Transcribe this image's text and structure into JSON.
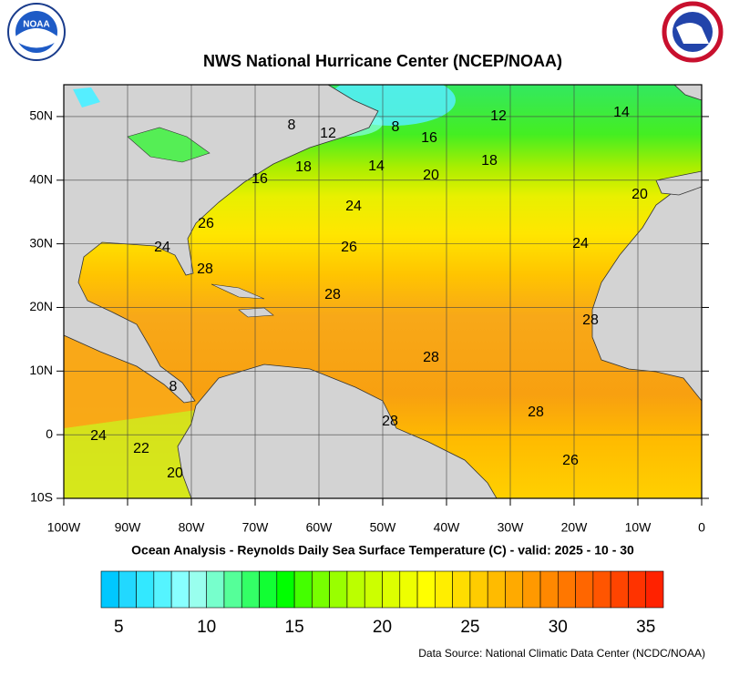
{
  "title": "NWS National Hurricane Center (NCEP/NOAA)",
  "logo_text": "NOAA",
  "map": {
    "xlim": [
      -100,
      0
    ],
    "ylim": [
      -10,
      55
    ],
    "xticks": [
      {
        "value": -100,
        "label": "100W"
      },
      {
        "value": -90,
        "label": "90W"
      },
      {
        "value": -80,
        "label": "80W"
      },
      {
        "value": -70,
        "label": "70W"
      },
      {
        "value": -60,
        "label": "60W"
      },
      {
        "value": -50,
        "label": "50W"
      },
      {
        "value": -40,
        "label": "40W"
      },
      {
        "value": -30,
        "label": "30W"
      },
      {
        "value": -20,
        "label": "20W"
      },
      {
        "value": -10,
        "label": "10W"
      },
      0
    ],
    "yticks": [
      {
        "value": -10,
        "label": "10S"
      },
      0,
      {
        "value": 10,
        "label": "10N"
      },
      {
        "value": 20,
        "label": "20N"
      },
      {
        "value": 30,
        "label": "30N"
      },
      {
        "value": 40,
        "label": "40N"
      },
      {
        "value": 50,
        "label": "50N"
      }
    ],
    "contour_labels": [
      8,
      12,
      8,
      16,
      12,
      14,
      18,
      16,
      14,
      20,
      18,
      24,
      26,
      20,
      24,
      26,
      24,
      28,
      28,
      28,
      28,
      8,
      28,
      28,
      26,
      24,
      22,
      20
    ]
  },
  "subtitle": "Ocean Analysis - Reynolds Daily Sea Surface Temperature (C) - valid: 2025 - 10 - 30",
  "colorbar": {
    "range": [
      4,
      36
    ],
    "ticks": [
      5,
      10,
      15,
      20,
      25,
      30,
      35
    ],
    "colors": [
      "#00c8ff",
      "#22d8ff",
      "#33e8ff",
      "#55f4ff",
      "#88ffff",
      "#99ffee",
      "#77ffcc",
      "#55ff99",
      "#33ff66",
      "#11ff33",
      "#00ff00",
      "#44ff00",
      "#77ff00",
      "#99ff00",
      "#bbff00",
      "#ccff00",
      "#ddff00",
      "#eeff00",
      "#ffff00",
      "#ffee00",
      "#ffdd00",
      "#ffcc00",
      "#ffbb00",
      "#ffaa00",
      "#ff9900",
      "#ff8800",
      "#ff7700",
      "#ff6600",
      "#ff5500",
      "#ff4400",
      "#ff3300",
      "#ff2200"
    ]
  },
  "source": "Data Source: National Climatic Data Center (NCDC/NOAA)"
}
